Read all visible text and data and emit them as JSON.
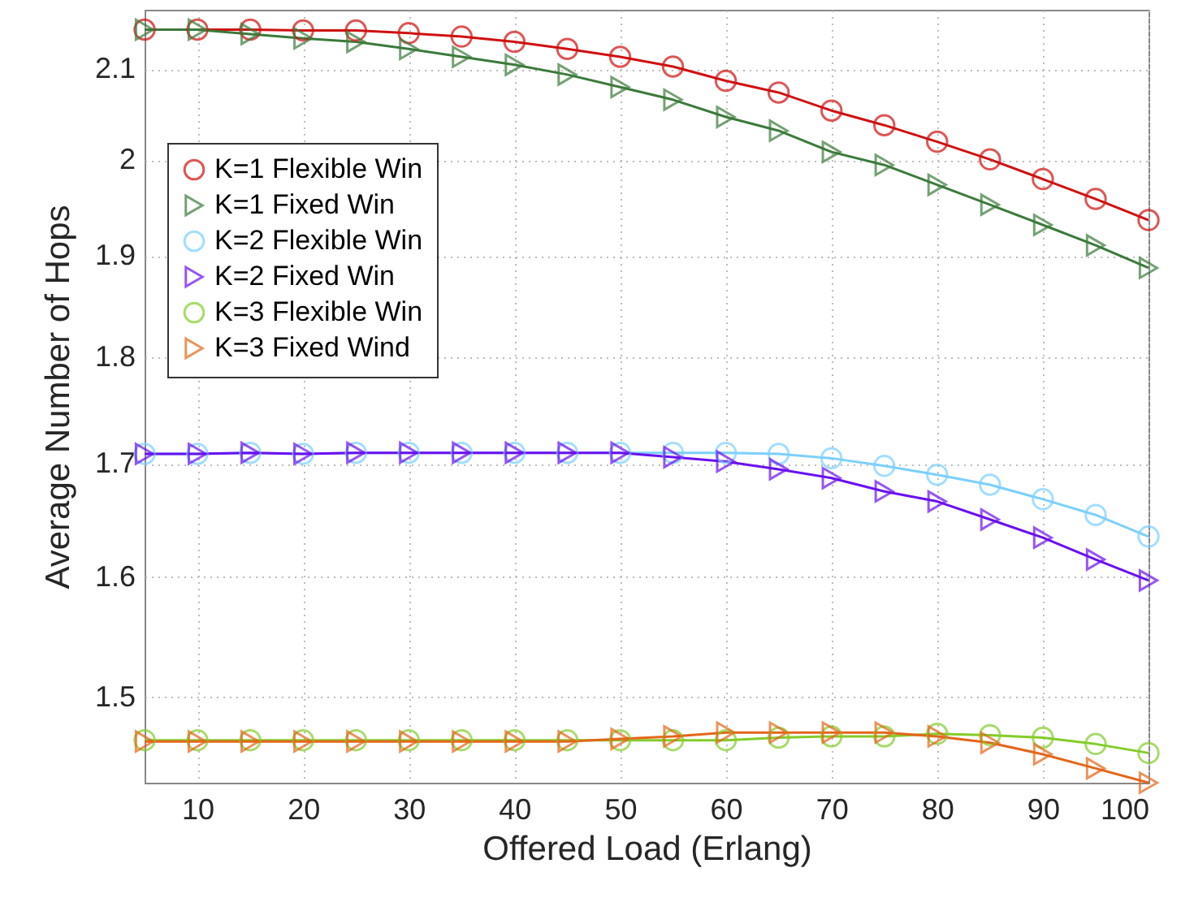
{
  "chart_data": {
    "type": "line",
    "xlabel": "Offered Load (Erlang)",
    "ylabel": "Average Number of Hops",
    "x": [
      5,
      10,
      15,
      20,
      25,
      30,
      35,
      40,
      45,
      50,
      55,
      60,
      65,
      70,
      75,
      80,
      85,
      90,
      95,
      100
    ],
    "series": [
      {
        "name": "K=1 Flexible Win",
        "color": "#d01010",
        "marker": "circle",
        "values": [
          2.145,
          2.145,
          2.145,
          2.144,
          2.144,
          2.141,
          2.137,
          2.131,
          2.123,
          2.114,
          2.103,
          2.087,
          2.074,
          2.054,
          2.038,
          2.02,
          2.001,
          1.98,
          1.959,
          1.937
        ]
      },
      {
        "name": "K=1 Fixed Win",
        "color": "#3b7a3b",
        "marker": "triangle",
        "values": [
          2.145,
          2.145,
          2.14,
          2.135,
          2.131,
          2.123,
          2.114,
          2.105,
          2.094,
          2.08,
          2.066,
          2.047,
          2.032,
          2.009,
          1.995,
          1.974,
          1.953,
          1.932,
          1.911,
          1.888
        ]
      },
      {
        "name": "K=2 Flexible Win",
        "color": "#7ccfff",
        "marker": "circle",
        "values": [
          1.709,
          1.709,
          1.71,
          1.709,
          1.71,
          1.71,
          1.71,
          1.71,
          1.71,
          1.71,
          1.71,
          1.71,
          1.709,
          1.705,
          1.698,
          1.69,
          1.681,
          1.668,
          1.654,
          1.635
        ]
      },
      {
        "name": "K=2 Fixed Win",
        "color": "#6a10f0",
        "marker": "triangle",
        "values": [
          1.709,
          1.709,
          1.71,
          1.709,
          1.71,
          1.71,
          1.71,
          1.71,
          1.71,
          1.71,
          1.706,
          1.702,
          1.695,
          1.687,
          1.675,
          1.666,
          1.65,
          1.634,
          1.615,
          1.597
        ]
      },
      {
        "name": "K=3 Flexible Win",
        "color": "#84cc2a",
        "marker": "circle",
        "values": [
          1.466,
          1.466,
          1.466,
          1.466,
          1.466,
          1.466,
          1.466,
          1.466,
          1.466,
          1.466,
          1.466,
          1.466,
          1.468,
          1.469,
          1.469,
          1.471,
          1.47,
          1.468,
          1.463,
          1.456
        ]
      },
      {
        "name": "K=3 Fixed Wind",
        "color": "#e3661a",
        "marker": "triangle",
        "values": [
          1.465,
          1.465,
          1.465,
          1.465,
          1.465,
          1.465,
          1.465,
          1.465,
          1.465,
          1.467,
          1.469,
          1.472,
          1.472,
          1.472,
          1.472,
          1.469,
          1.464,
          1.455,
          1.444,
          1.433
        ]
      }
    ],
    "xlim": [
      5,
      100
    ],
    "xticks": [
      10,
      20,
      30,
      40,
      50,
      60,
      70,
      80,
      90,
      100
    ],
    "ylim": [
      1.433,
      2.168
    ],
    "yticks": [
      1.5,
      1.6,
      1.7,
      1.8,
      1.9,
      2,
      2.1
    ],
    "log": true,
    "grid": true,
    "legend": "top left",
    "line_style": "solid"
  }
}
